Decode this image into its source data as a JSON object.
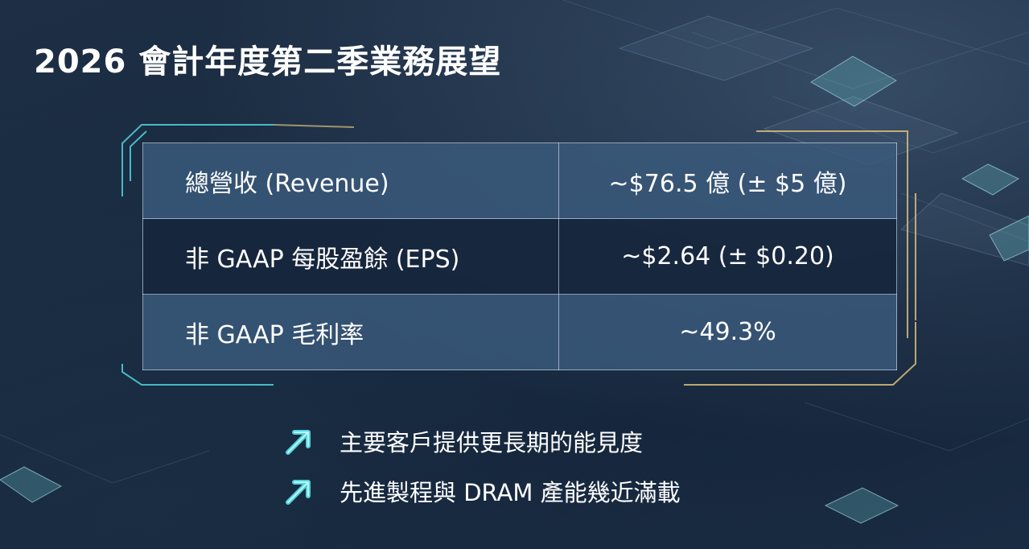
{
  "title": "2026 會計年度第二季業務展望",
  "guidance": {
    "rows": [
      {
        "label": "總營收 (Revenue)",
        "value": "~$76.5 億 (± $5 億)"
      },
      {
        "label": "非 GAAP 每股盈餘 (EPS)",
        "value": "~$2.64 (± $0.20)"
      },
      {
        "label": "非 GAAP 毛利率",
        "value": "~49.3%"
      }
    ]
  },
  "highlights": [
    {
      "icon": "arrow-up-right-icon",
      "text": "主要客戶提供更長期的能見度"
    },
    {
      "icon": "arrow-up-right-icon",
      "text": "先進製程與 DRAM 產能幾近滿載"
    }
  ],
  "colors": {
    "background": "#182a40",
    "accent_cyan": "#4fd3dc",
    "accent_gold": "#d9bf7a",
    "row_light": "#3a5a7c",
    "row_dark": "#16263c"
  }
}
